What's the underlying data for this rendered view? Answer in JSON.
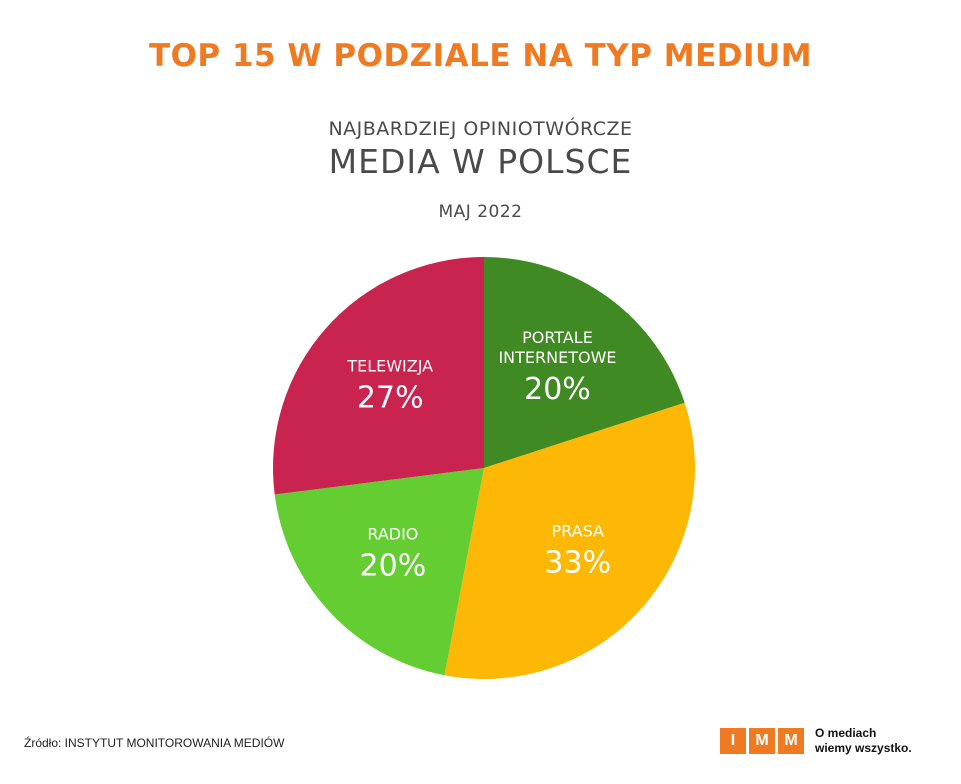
{
  "header": {
    "headline": "TOP 15 W PODZIALE NA TYP MEDIUM",
    "subtitle": "NAJBARDZIEJ OPINIOTWÓRCZE",
    "title": "MEDIA W POLSCE",
    "date": "MAJ 2022"
  },
  "chart_data": {
    "type": "pie",
    "title": "MEDIA W POLSCE",
    "slices": [
      {
        "label": "PORTALE INTERNETOWE",
        "value": 20,
        "value_label": "20%",
        "color": "#3f8a22"
      },
      {
        "label": "PRASA",
        "value": 33,
        "value_label": "33%",
        "color": "#fdb805"
      },
      {
        "label": "RADIO",
        "value": 20,
        "value_label": "20%",
        "color": "#63cd32"
      },
      {
        "label": "TELEWIZJA",
        "value": 27,
        "value_label": "27%",
        "color": "#c9234f"
      }
    ]
  },
  "footer": {
    "source": "Źródło: INSTYTUT MONITOROWANIA MEDIÓW",
    "logo_letters": [
      "I",
      "M",
      "M"
    ],
    "tagline_line1": "O mediach",
    "tagline_line2": "wiemy wszystko."
  },
  "colors": {
    "accent": "#ef7a22",
    "text": "#4a4a4a"
  }
}
